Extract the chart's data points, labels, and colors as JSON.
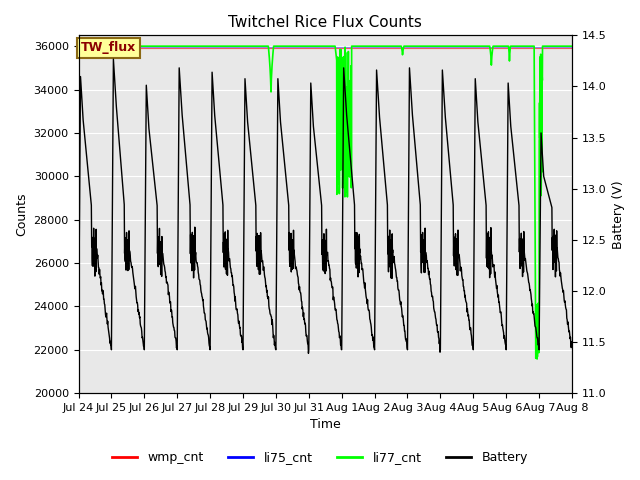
{
  "title": "Twitchel Rice Flux Counts",
  "xlabel": "Time",
  "ylabel_left": "Counts",
  "ylabel_right": "Battery (V)",
  "ylim_left": [
    20000,
    36500
  ],
  "ylim_right": [
    11.0,
    14.5
  ],
  "yticks_left": [
    20000,
    22000,
    24000,
    26000,
    28000,
    30000,
    32000,
    34000,
    36000
  ],
  "yticks_right": [
    11.0,
    11.5,
    12.0,
    12.5,
    13.0,
    13.5,
    14.0,
    14.5
  ],
  "bg_color": "#e8e8e8",
  "legend_labels": [
    "wmp_cnt",
    "li75_cnt",
    "li77_cnt",
    "Battery"
  ],
  "legend_colors": [
    "red",
    "blue",
    "lime",
    "black"
  ],
  "annotation_box_color": "#ffff99",
  "annotation_text": "TW_flux",
  "annotation_text_color": "#8b0000",
  "n_days": 15,
  "xtick_labels": [
    "Jul 24",
    "Jul 25",
    "Jul 26",
    "Jul 27",
    "Jul 28",
    "Jul 29",
    "Jul 30",
    "Jul 31",
    "Aug 1",
    "Aug 2",
    "Aug 3",
    "Aug 4",
    "Aug 5",
    "Aug 6",
    "Aug 7",
    "Aug 8"
  ],
  "batt_min": 22000,
  "batt_max": 35000,
  "batt_wiggle_level": 26500,
  "li77_level": 36000,
  "grid_color": "white",
  "title_fontsize": 11,
  "tick_fontsize": 8,
  "label_fontsize": 9,
  "legend_fontsize": 9
}
